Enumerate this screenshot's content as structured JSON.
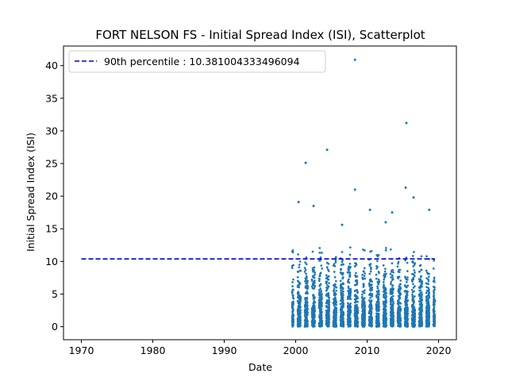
{
  "chart_data": {
    "type": "scatter",
    "title": "FORT NELSON FS - Initial Spread Index (ISI), Scatterplot",
    "xlabel": "Date",
    "ylabel": "Initial Spread Index (ISI)",
    "xlim": [
      1967.5,
      2022.5
    ],
    "ylim": [
      -2.0,
      43.0
    ],
    "x_ticks": [
      1970,
      1980,
      1990,
      2000,
      2010,
      2020
    ],
    "y_ticks": [
      0,
      5,
      10,
      15,
      20,
      25,
      30,
      35,
      40
    ],
    "grid": false,
    "legend_position": "top-left",
    "colors": {
      "points": "#1f77b4",
      "percentile_line": "#0000cc"
    },
    "series": [
      {
        "name": "90th percentile : 10.381004333496094",
        "kind": "dashed-line",
        "x": [
          1970,
          2019.5
        ],
        "y": [
          10.381004333496094,
          10.381004333496094
        ]
      }
    ],
    "scatter_extent": {
      "x": [
        1999.5,
        2019.5
      ],
      "y": [
        0.0,
        41.0
      ]
    },
    "notable_points": [
      {
        "x": 2008.3,
        "y": 40.9
      },
      {
        "x": 2015.5,
        "y": 31.2
      },
      {
        "x": 2004.4,
        "y": 27.1
      },
      {
        "x": 2001.4,
        "y": 25.1
      },
      {
        "x": 2015.4,
        "y": 21.3
      },
      {
        "x": 2008.3,
        "y": 21.0
      },
      {
        "x": 2016.5,
        "y": 19.8
      },
      {
        "x": 2000.4,
        "y": 19.1
      },
      {
        "x": 2002.5,
        "y": 18.5
      },
      {
        "x": 2018.7,
        "y": 17.9
      },
      {
        "x": 2010.4,
        "y": 17.9
      },
      {
        "x": 2013.5,
        "y": 17.5
      },
      {
        "x": 2012.6,
        "y": 16.0
      },
      {
        "x": 2006.5,
        "y": 15.6
      }
    ]
  }
}
